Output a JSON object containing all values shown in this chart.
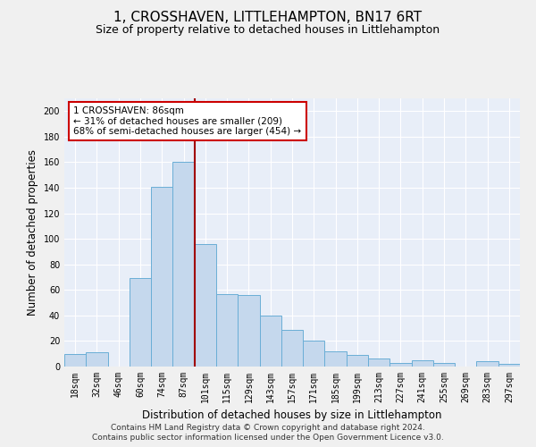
{
  "title": "1, CROSSHAVEN, LITTLEHAMPTON, BN17 6RT",
  "subtitle": "Size of property relative to detached houses in Littlehampton",
  "xlabel": "Distribution of detached houses by size in Littlehampton",
  "ylabel": "Number of detached properties",
  "categories": [
    "18sqm",
    "32sqm",
    "46sqm",
    "60sqm",
    "74sqm",
    "87sqm",
    "101sqm",
    "115sqm",
    "129sqm",
    "143sqm",
    "157sqm",
    "171sqm",
    "185sqm",
    "199sqm",
    "213sqm",
    "227sqm",
    "241sqm",
    "255sqm",
    "269sqm",
    "283sqm",
    "297sqm"
  ],
  "values": [
    10,
    11,
    0,
    69,
    141,
    160,
    96,
    57,
    56,
    40,
    29,
    20,
    12,
    9,
    6,
    3,
    5,
    3,
    0,
    4,
    2
  ],
  "bar_color": "#c5d8ed",
  "bar_edge_color": "#6aaed6",
  "vline_x": 5.5,
  "vline_color": "#a00000",
  "annotation_text": "1 CROSSHAVEN: 86sqm\n← 31% of detached houses are smaller (209)\n68% of semi-detached houses are larger (454) →",
  "annotation_box_color": "#ffffff",
  "annotation_box_edge": "#cc0000",
  "footer_line1": "Contains HM Land Registry data © Crown copyright and database right 2024.",
  "footer_line2": "Contains public sector information licensed under the Open Government Licence v3.0.",
  "ylim": [
    0,
    210
  ],
  "yticks": [
    0,
    20,
    40,
    60,
    80,
    100,
    120,
    140,
    160,
    180,
    200
  ],
  "bg_color": "#e8eef8",
  "fig_bg_color": "#f0f0f0",
  "grid_color": "#ffffff",
  "title_fontsize": 11,
  "subtitle_fontsize": 9,
  "axis_label_fontsize": 8.5,
  "tick_fontsize": 7,
  "footer_fontsize": 6.5,
  "ann_fontsize": 7.5
}
